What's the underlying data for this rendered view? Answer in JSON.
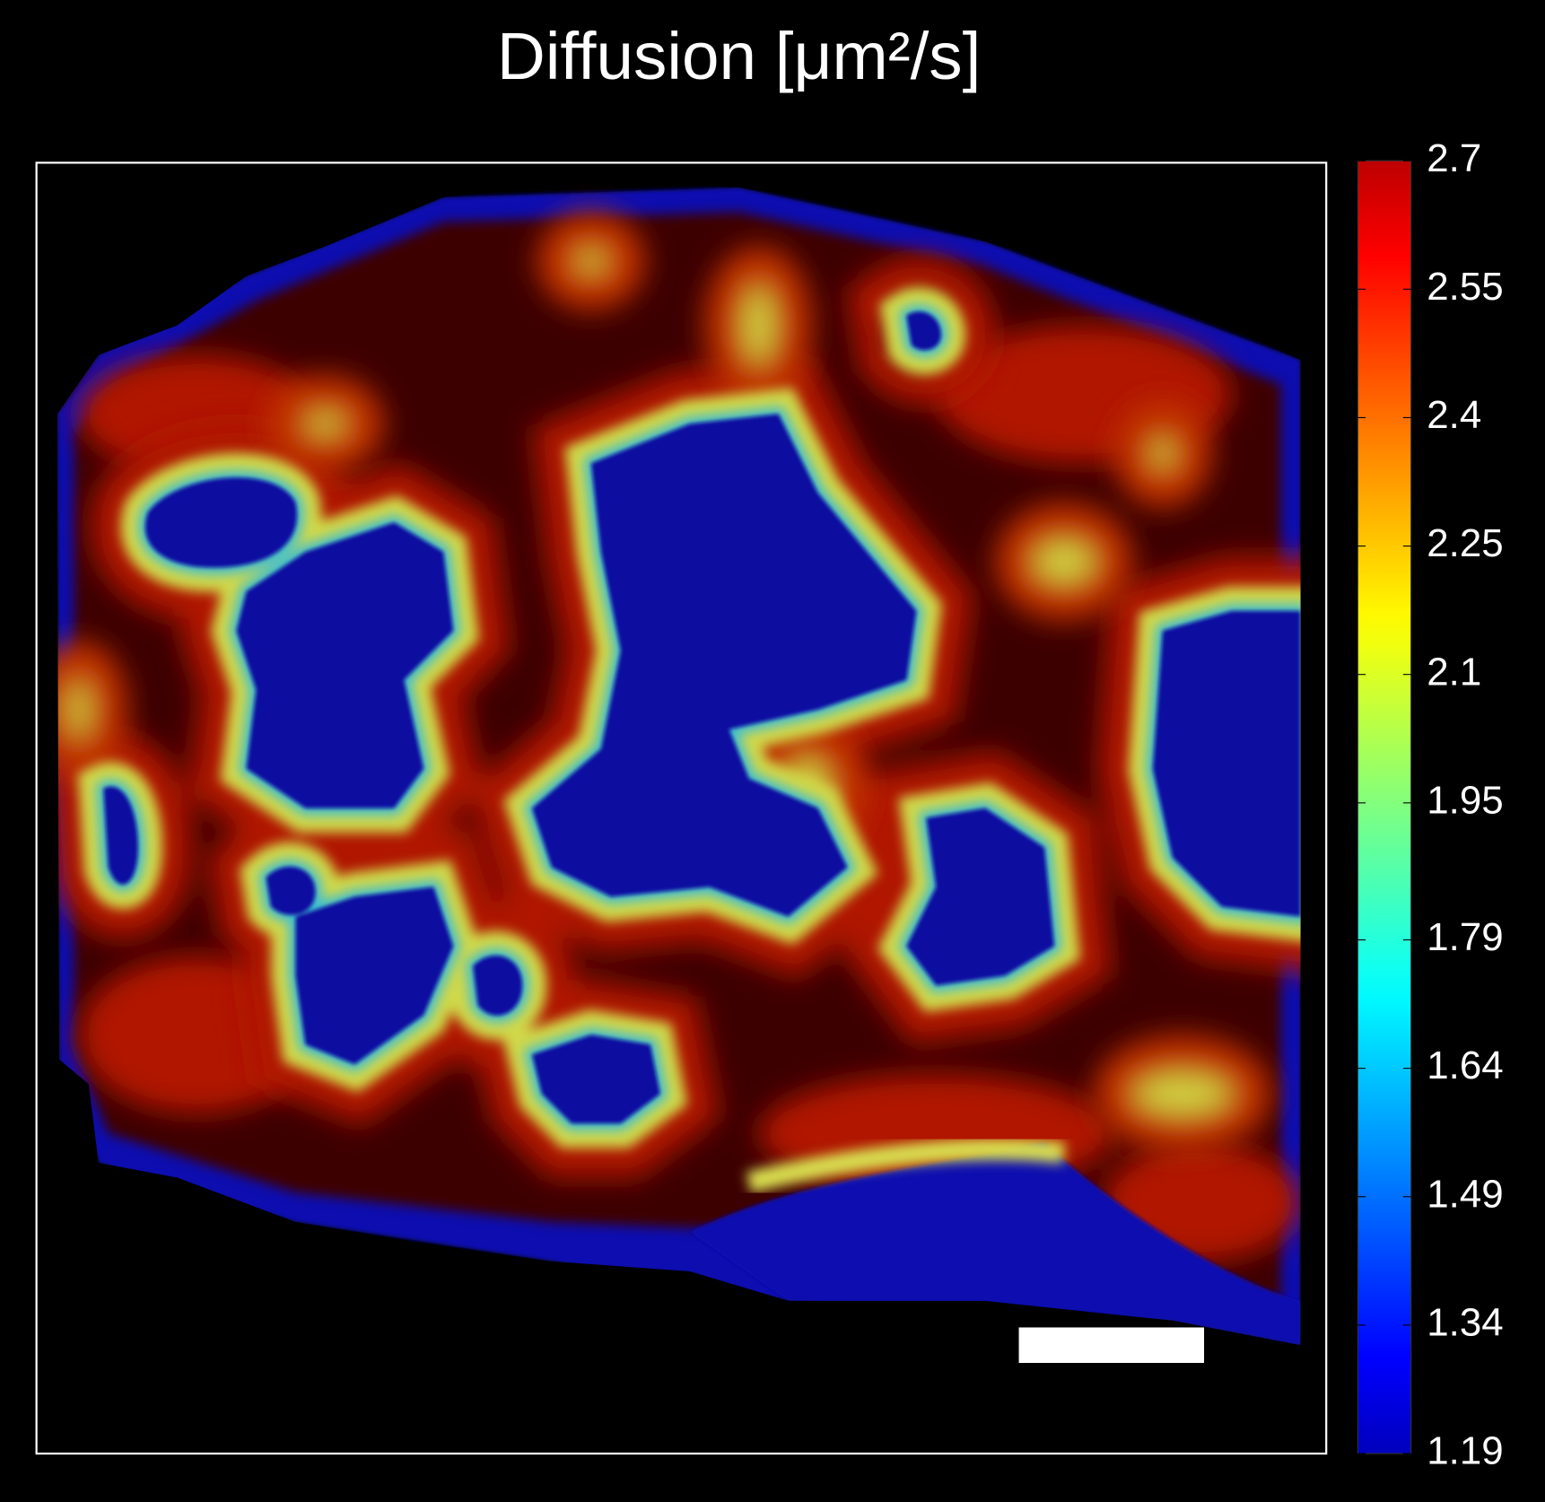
{
  "chart_data": {
    "type": "heatmap",
    "title": "Diffusion [μm²/s]",
    "colormap": "jet",
    "clim": [
      1.19,
      2.7
    ],
    "cticks": [
      2.7,
      2.55,
      2.4,
      2.25,
      2.1,
      1.95,
      1.79,
      1.64,
      1.49,
      1.34,
      1.19
    ]
  }
}
